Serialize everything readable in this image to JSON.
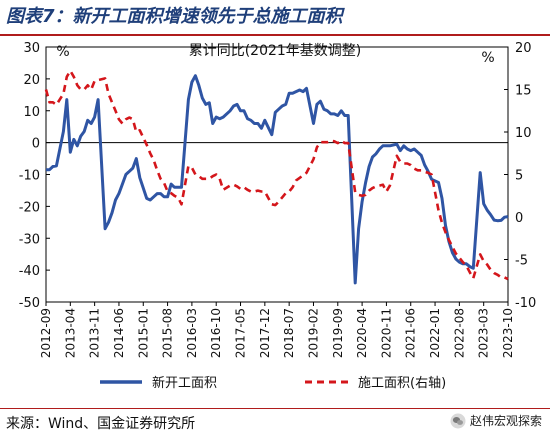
{
  "header": {
    "figure_title": "图表7：新开工面积增速领先于总施工面积"
  },
  "footer": {
    "source": "来源：Wind、国金证券研究所",
    "watermark": "赵伟宏观探索"
  },
  "colors": {
    "title": "#1f3f7a",
    "rule": "#b01c1c",
    "series_new_starts": "#2f55a4",
    "series_under_construction": "#d4161b"
  },
  "chart_data": {
    "type": "line",
    "title": "累计同比(2021年基数调整)",
    "left_unit": "%",
    "right_unit": "%",
    "ylim_left": [
      -50,
      30
    ],
    "ylim_right": [
      -10,
      20
    ],
    "yticks_left": [
      "30",
      "20",
      "10",
      "0",
      "-10",
      "-20",
      "-30",
      "-40",
      "-50"
    ],
    "yticks_right": [
      "20",
      "15",
      "10",
      "5",
      "0",
      "-5",
      "-10"
    ],
    "xticks": [
      "2012-09",
      "2013-04",
      "2013-11",
      "2014-06",
      "2015-01",
      "2015-08",
      "2016-03",
      "2016-10",
      "2017-05",
      "2017-12",
      "2018-07",
      "2019-02",
      "2019-09",
      "2020-04",
      "2020-11",
      "2021-06",
      "2022-01",
      "2022-08",
      "2023-03",
      "2023-10"
    ],
    "x_start": "2012-09",
    "x_end": "2023-10",
    "legend_position": "bottom",
    "series": [
      {
        "name": "新开工面积",
        "axis": "left",
        "style": "solid",
        "points": [
          [
            "2012-09",
            -8.5
          ],
          [
            "2012-10",
            -8.5
          ],
          [
            "2012-11",
            -7.5
          ],
          [
            "2012-12",
            -7.3
          ],
          [
            "2013-02",
            3.5
          ],
          [
            "2013-03",
            13.5
          ],
          [
            "2013-04",
            -3.0
          ],
          [
            "2013-05",
            1.0
          ],
          [
            "2013-06",
            -1.0
          ],
          [
            "2013-07",
            2.0
          ],
          [
            "2013-08",
            3.5
          ],
          [
            "2013-09",
            7.0
          ],
          [
            "2013-10",
            6.0
          ],
          [
            "2013-11",
            8.0
          ],
          [
            "2013-12",
            13.5
          ],
          [
            "2014-02",
            -27.0
          ],
          [
            "2014-03",
            -25.0
          ],
          [
            "2014-04",
            -22.0
          ],
          [
            "2014-05",
            -18.0
          ],
          [
            "2014-06",
            -16.0
          ],
          [
            "2014-07",
            -13.0
          ],
          [
            "2014-08",
            -10.0
          ],
          [
            "2014-09",
            -9.0
          ],
          [
            "2014-10",
            -8.0
          ],
          [
            "2014-11",
            -5.0
          ],
          [
            "2014-12",
            -11.0
          ],
          [
            "2015-02",
            -17.5
          ],
          [
            "2015-03",
            -18.0
          ],
          [
            "2015-04",
            -17.0
          ],
          [
            "2015-05",
            -16.0
          ],
          [
            "2015-06",
            -16.0
          ],
          [
            "2015-07",
            -17.0
          ],
          [
            "2015-08",
            -17.0
          ],
          [
            "2015-09",
            -13.0
          ],
          [
            "2015-10",
            -14.0
          ],
          [
            "2015-11",
            -14.0
          ],
          [
            "2015-12",
            -14.0
          ],
          [
            "2016-02",
            13.5
          ],
          [
            "2016-03",
            19.0
          ],
          [
            "2016-04",
            21.0
          ],
          [
            "2016-05",
            18.0
          ],
          [
            "2016-06",
            14.0
          ],
          [
            "2016-07",
            12.0
          ],
          [
            "2016-08",
            12.5
          ],
          [
            "2016-09",
            6.0
          ],
          [
            "2016-10",
            8.0
          ],
          [
            "2016-11",
            7.5
          ],
          [
            "2016-12",
            8.0
          ],
          [
            "2017-02",
            10.0
          ],
          [
            "2017-03",
            11.5
          ],
          [
            "2017-04",
            12.0
          ],
          [
            "2017-05",
            10.0
          ],
          [
            "2017-06",
            10.0
          ],
          [
            "2017-07",
            7.5
          ],
          [
            "2017-08",
            7.0
          ],
          [
            "2017-09",
            6.0
          ],
          [
            "2017-10",
            6.0
          ],
          [
            "2017-11",
            4.5
          ],
          [
            "2017-12",
            7.0
          ],
          [
            "2018-02",
            2.5
          ],
          [
            "2018-03",
            9.5
          ],
          [
            "2018-04",
            10.5
          ],
          [
            "2018-05",
            11.5
          ],
          [
            "2018-06",
            12.0
          ],
          [
            "2018-07",
            15.5
          ],
          [
            "2018-08",
            15.5
          ],
          [
            "2018-09",
            16.0
          ],
          [
            "2018-10",
            16.5
          ],
          [
            "2018-11",
            16.0
          ],
          [
            "2018-12",
            17.0
          ],
          [
            "2019-02",
            6.0
          ],
          [
            "2019-03",
            12.0
          ],
          [
            "2019-04",
            13.0
          ],
          [
            "2019-05",
            10.5
          ],
          [
            "2019-06",
            10.0
          ],
          [
            "2019-07",
            9.0
          ],
          [
            "2019-08",
            9.0
          ],
          [
            "2019-09",
            8.5
          ],
          [
            "2019-10",
            10.0
          ],
          [
            "2019-11",
            8.5
          ],
          [
            "2019-12",
            8.5
          ],
          [
            "2020-02",
            -44.0
          ],
          [
            "2020-03",
            -27.0
          ],
          [
            "2020-04",
            -18.5
          ],
          [
            "2020-05",
            -12.5
          ],
          [
            "2020-06",
            -7.5
          ],
          [
            "2020-07",
            -4.5
          ],
          [
            "2020-08",
            -3.5
          ],
          [
            "2020-09",
            -2.0
          ],
          [
            "2020-10",
            -1.0
          ],
          [
            "2020-11",
            -1.0
          ],
          [
            "2020-12",
            -1.0
          ],
          [
            "2021-02",
            -0.5
          ],
          [
            "2021-03",
            -2.5
          ],
          [
            "2021-04",
            -1.0
          ],
          [
            "2021-05",
            -2.0
          ],
          [
            "2021-06",
            -2.5
          ],
          [
            "2021-07",
            -2.0
          ],
          [
            "2021-08",
            -3.0
          ],
          [
            "2021-09",
            -4.0
          ],
          [
            "2021-10",
            -7.0
          ],
          [
            "2021-11",
            -9.0
          ],
          [
            "2021-12",
            -11.5
          ],
          [
            "2022-02",
            -12.5
          ],
          [
            "2022-03",
            -17.5
          ],
          [
            "2022-04",
            -26.0
          ],
          [
            "2022-05",
            -31.0
          ],
          [
            "2022-06",
            -34.5
          ],
          [
            "2022-07",
            -36.5
          ],
          [
            "2022-08",
            -37.5
          ],
          [
            "2022-09",
            -38.0
          ],
          [
            "2022-10",
            -38.0
          ],
          [
            "2022-11",
            -38.9
          ],
          [
            "2022-12",
            -39.4
          ],
          [
            "2023-02",
            -9.4
          ],
          [
            "2023-03",
            -19.2
          ],
          [
            "2023-04",
            -21.2
          ],
          [
            "2023-05",
            -22.6
          ],
          [
            "2023-06",
            -24.3
          ],
          [
            "2023-07",
            -24.5
          ],
          [
            "2023-08",
            -24.4
          ],
          [
            "2023-09",
            -23.4
          ],
          [
            "2023-10",
            -23.2
          ]
        ]
      },
      {
        "name": "施工面积(右轴)",
        "axis": "right",
        "style": "dashed",
        "points": [
          [
            "2012-09",
            15.0
          ],
          [
            "2012-10",
            13.5
          ],
          [
            "2012-11",
            13.5
          ],
          [
            "2012-12",
            13.2
          ],
          [
            "2013-02",
            14.5
          ],
          [
            "2013-03",
            16.5
          ],
          [
            "2013-04",
            17.2
          ],
          [
            "2013-05",
            16.5
          ],
          [
            "2013-06",
            15.5
          ],
          [
            "2013-07",
            15.0
          ],
          [
            "2013-08",
            15.0
          ],
          [
            "2013-09",
            15.5
          ],
          [
            "2013-10",
            15.0
          ],
          [
            "2013-11",
            16.0
          ],
          [
            "2013-12",
            16.1
          ],
          [
            "2014-02",
            16.3
          ],
          [
            "2014-03",
            14.5
          ],
          [
            "2014-04",
            13.5
          ],
          [
            "2014-05",
            12.5
          ],
          [
            "2014-06",
            11.5
          ],
          [
            "2014-07",
            11.0
          ],
          [
            "2014-08",
            11.5
          ],
          [
            "2014-09",
            11.7
          ],
          [
            "2014-10",
            11.5
          ],
          [
            "2014-11",
            10.0
          ],
          [
            "2014-12",
            10.2
          ],
          [
            "2015-02",
            8.5
          ],
          [
            "2015-03",
            7.5
          ],
          [
            "2015-04",
            6.7
          ],
          [
            "2015-05",
            5.5
          ],
          [
            "2015-06",
            4.5
          ],
          [
            "2015-07",
            4.0
          ],
          [
            "2015-08",
            3.0
          ],
          [
            "2015-09",
            2.8
          ],
          [
            "2015-10",
            2.5
          ],
          [
            "2015-11",
            2.3
          ],
          [
            "2015-12",
            1.5
          ],
          [
            "2016-02",
            6.0
          ],
          [
            "2016-03",
            5.8
          ],
          [
            "2016-04",
            5.0
          ],
          [
            "2016-05",
            4.8
          ],
          [
            "2016-06",
            4.5
          ],
          [
            "2016-07",
            4.5
          ],
          [
            "2016-08",
            4.5
          ],
          [
            "2016-09",
            4.8
          ],
          [
            "2016-10",
            5.0
          ],
          [
            "2016-11",
            4.5
          ],
          [
            "2016-12",
            3.2
          ],
          [
            "2017-02",
            3.7
          ],
          [
            "2017-03",
            3.8
          ],
          [
            "2017-04",
            3.6
          ],
          [
            "2017-05",
            3.3
          ],
          [
            "2017-06",
            3.5
          ],
          [
            "2017-07",
            3.2
          ],
          [
            "2017-08",
            3.0
          ],
          [
            "2017-09",
            3.0
          ],
          [
            "2017-10",
            3.1
          ],
          [
            "2017-11",
            3.0
          ],
          [
            "2017-12",
            3.0
          ],
          [
            "2018-02",
            1.5
          ],
          [
            "2018-03",
            1.4
          ],
          [
            "2018-04",
            1.8
          ],
          [
            "2018-05",
            2.3
          ],
          [
            "2018-06",
            2.8
          ],
          [
            "2018-07",
            3.0
          ],
          [
            "2018-08",
            3.5
          ],
          [
            "2018-09",
            4.3
          ],
          [
            "2018-10",
            4.6
          ],
          [
            "2018-11",
            4.9
          ],
          [
            "2018-12",
            5.2
          ],
          [
            "2019-02",
            6.8
          ],
          [
            "2019-03",
            8.2
          ],
          [
            "2019-04",
            8.8
          ],
          [
            "2019-05",
            8.8
          ],
          [
            "2019-06",
            8.8
          ],
          [
            "2019-07",
            9.0
          ],
          [
            "2019-08",
            8.9
          ],
          [
            "2019-09",
            8.7
          ],
          [
            "2019-10",
            9.0
          ],
          [
            "2019-11",
            8.7
          ],
          [
            "2019-12",
            8.7
          ],
          [
            "2020-02",
            2.9
          ],
          [
            "2020-03",
            2.6
          ],
          [
            "2020-04",
            2.5
          ],
          [
            "2020-05",
            2.6
          ],
          [
            "2020-06",
            3.1
          ],
          [
            "2020-07",
            3.4
          ],
          [
            "2020-08",
            3.6
          ],
          [
            "2020-09",
            3.7
          ],
          [
            "2020-10",
            3.8
          ],
          [
            "2020-11",
            3.0
          ],
          [
            "2020-12",
            3.7
          ],
          [
            "2021-02",
            7.2
          ],
          [
            "2021-03",
            6.5
          ],
          [
            "2021-04",
            6.3
          ],
          [
            "2021-05",
            6.3
          ],
          [
            "2021-06",
            6.1
          ],
          [
            "2021-07",
            5.7
          ],
          [
            "2021-08",
            5.5
          ],
          [
            "2021-09",
            5.5
          ],
          [
            "2021-10",
            5.3
          ],
          [
            "2021-11",
            5.2
          ],
          [
            "2021-12",
            5.0
          ],
          [
            "2022-02",
            0.8
          ],
          [
            "2022-03",
            -0.7
          ],
          [
            "2022-04",
            -1.8
          ],
          [
            "2022-05",
            -2.7
          ],
          [
            "2022-06",
            -3.5
          ],
          [
            "2022-07",
            -4.3
          ],
          [
            "2022-08",
            -4.8
          ],
          [
            "2022-09",
            -5.3
          ],
          [
            "2022-10",
            -5.7
          ],
          [
            "2022-11",
            -6.5
          ],
          [
            "2022-12",
            -7.2
          ],
          [
            "2023-02",
            -4.4
          ],
          [
            "2023-03",
            -5.2
          ],
          [
            "2023-04",
            -5.6
          ],
          [
            "2023-05",
            -6.2
          ],
          [
            "2023-06",
            -6.6
          ],
          [
            "2023-07",
            -6.8
          ],
          [
            "2023-08",
            -7.1
          ],
          [
            "2023-09",
            -7.1
          ],
          [
            "2023-10",
            -7.3
          ]
        ]
      }
    ]
  }
}
